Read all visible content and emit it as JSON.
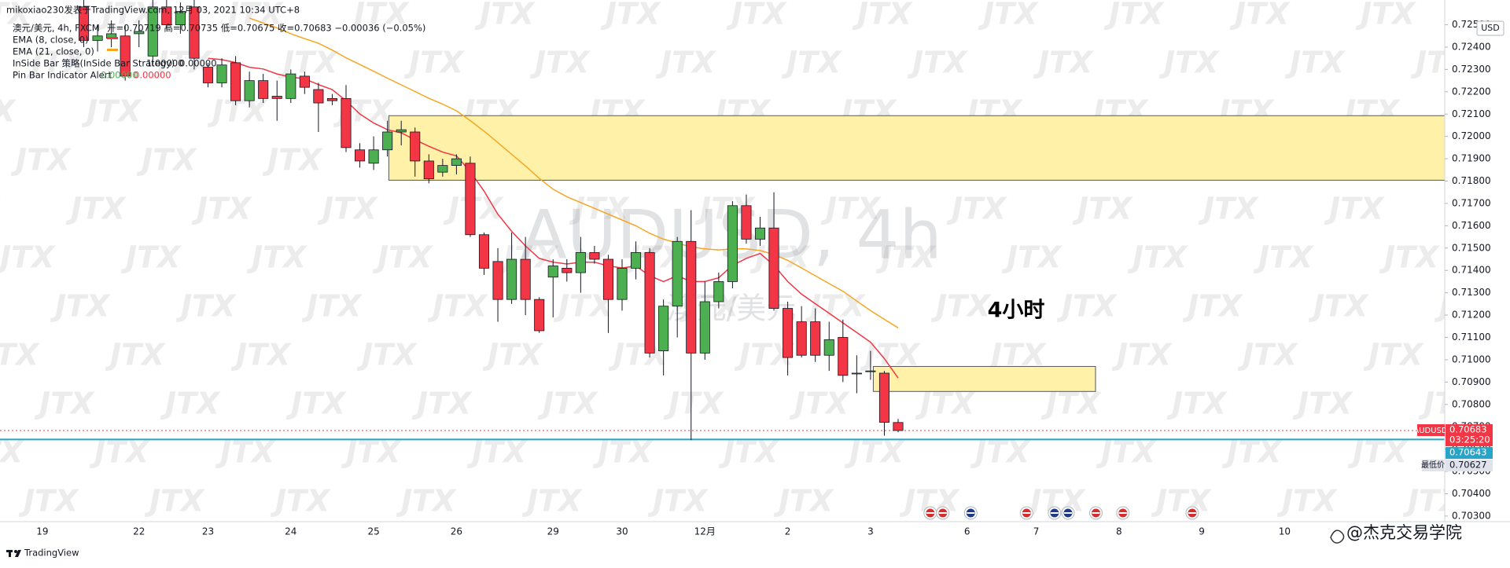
{
  "header": {
    "publisher": "mikoxiao230发表于TradingView.com, 12月 03, 2021 10:34 UTC+8",
    "symbol_line": "澳元/美元, 4h, FXCM",
    "ohlc_line": "开=0.70719 高=0.70735 低=0.70675 收=0.70683 −0.00036 (−0.05%)",
    "indicators": [
      {
        "name": "InSide Bar 策略(InSide Bar Strategy)",
        "values": [
          "1.00000",
          "0.00000"
        ]
      },
      {
        "name": "Pin Bar Indicator Alert",
        "values": [
          "0.00000",
          "0.00000"
        ]
      }
    ]
  },
  "footer": {
    "brand": "TradingView",
    "author": "@杰克交易学院"
  },
  "watermark": "JTX",
  "chart_data": {
    "type": "candlestick",
    "title": "AUDUSD, 4h",
    "subtitle": "澳元/美元",
    "annotation": "4小时",
    "currency": "USD",
    "up_color": "#4caf50",
    "down_color": "#f23645",
    "categories": [
      "19",
      null,
      null,
      null,
      null,
      null,
      null,
      "22",
      null,
      null,
      null,
      null,
      "23",
      null,
      null,
      null,
      null,
      null,
      "24",
      null,
      null,
      null,
      null,
      null,
      "25",
      null,
      null,
      null,
      null,
      null,
      "26",
      null,
      null,
      null,
      null,
      null,
      null,
      "29",
      null,
      null,
      null,
      null,
      "30",
      null,
      null,
      null,
      null,
      null,
      "12月",
      null,
      null,
      null,
      null,
      null,
      "2",
      null,
      null,
      null,
      null,
      null,
      "3",
      null,
      null,
      null,
      null,
      null,
      null,
      "6",
      null,
      null,
      null,
      null,
      "7",
      null,
      null,
      null,
      null,
      null,
      "8",
      null,
      null,
      null,
      null,
      null,
      "9",
      null,
      null,
      null,
      null,
      null,
      "10"
    ],
    "open": [
      null,
      null,
      null,
      0.7258,
      0.7243,
      0.7244,
      0.7245,
      0.7246,
      0.7236,
      0.7258,
      0.725,
      0.7258,
      0.7231,
      0.7224,
      0.7233,
      0.7216,
      0.7225,
      0.7218,
      0.7217,
      0.7227,
      0.7221,
      0.7217,
      0.7217,
      0.7194,
      0.7188,
      0.7194,
      0.7202,
      0.7202,
      0.7189,
      0.7184,
      0.7187,
      0.7188,
      0.7156,
      0.7144,
      0.7127,
      0.7145,
      0.7127,
      0.7137,
      0.7141,
      0.7139,
      0.7148,
      0.7145,
      0.7127,
      0.7141,
      0.7148,
      0.7104,
      0.7124,
      0.7153,
      0.7103,
      0.7126,
      0.7135,
      0.7169,
      0.7154,
      0.7159,
      0.7123,
      0.7117,
      0.7117,
      0.7102,
      0.711,
      0.7094,
      0.7095,
      0.7094,
      0.70719,
      null,
      null,
      null,
      null,
      null,
      null,
      null,
      null,
      null,
      null,
      null,
      null,
      null,
      null,
      null,
      null,
      null,
      null,
      null,
      null,
      null,
      null,
      null,
      null,
      null,
      null,
      null,
      null
    ],
    "high": [
      null,
      null,
      null,
      0.7262,
      0.725,
      0.7252,
      0.725,
      0.7252,
      0.7262,
      0.7262,
      0.726,
      0.7262,
      0.7233,
      0.7235,
      0.7236,
      0.7229,
      0.7228,
      0.7225,
      0.723,
      0.7229,
      0.7224,
      0.7219,
      0.7223,
      0.7197,
      0.72,
      0.7207,
      0.7207,
      0.7204,
      0.7192,
      0.719,
      0.7192,
      0.7191,
      0.7157,
      0.715,
      0.7157,
      0.7155,
      0.7128,
      0.7145,
      0.7145,
      0.7155,
      0.7151,
      0.7147,
      0.7145,
      0.7153,
      0.715,
      0.7127,
      0.7155,
      0.7167,
      0.7135,
      0.7139,
      0.7171,
      0.7174,
      0.7164,
      0.7175,
      0.7126,
      0.7124,
      0.7123,
      0.7117,
      0.7118,
      0.7102,
      0.7104,
      0.7095,
      0.70735,
      null,
      null,
      null,
      null,
      null,
      null,
      null,
      null,
      null,
      null,
      null,
      null,
      null,
      null,
      null,
      null,
      null,
      null,
      null,
      null,
      null,
      null,
      null,
      null,
      null,
      null,
      null,
      null
    ],
    "low": [
      null,
      null,
      null,
      0.724,
      0.7238,
      0.724,
      0.7225,
      0.724,
      0.7232,
      0.7248,
      0.7246,
      0.723,
      0.7222,
      0.7222,
      0.7214,
      0.7213,
      0.7215,
      0.7207,
      0.7215,
      0.7219,
      0.7202,
      0.7214,
      0.7193,
      0.7186,
      0.7185,
      0.7191,
      0.7196,
      0.7182,
      0.7179,
      0.7182,
      0.7183,
      0.7155,
      0.7138,
      0.7117,
      0.7125,
      0.712,
      0.7112,
      0.7119,
      0.7135,
      0.713,
      0.7143,
      0.7112,
      0.7122,
      0.7136,
      0.7101,
      0.7093,
      0.711,
      0.7064,
      0.71,
      0.7123,
      0.7132,
      0.7152,
      0.7151,
      0.7122,
      0.7093,
      0.7101,
      0.7099,
      0.7095,
      0.709,
      0.7085,
      0.7091,
      0.7066,
      0.70675,
      null,
      null,
      null,
      null,
      null,
      null,
      null,
      null,
      null,
      null,
      null,
      null,
      null,
      null,
      null,
      null,
      null,
      null,
      null,
      null,
      null,
      null,
      null,
      null,
      null,
      null,
      null,
      null
    ],
    "close": [
      null,
      null,
      null,
      0.7243,
      0.7245,
      0.7246,
      0.7227,
      0.7247,
      0.7258,
      0.725,
      0.7256,
      0.7235,
      0.7224,
      0.7232,
      0.7216,
      0.7225,
      0.7217,
      0.7217,
      0.7228,
      0.7222,
      0.7215,
      0.7216,
      0.7195,
      0.7189,
      0.7194,
      0.7202,
      0.7203,
      0.7189,
      0.7181,
      0.7187,
      0.719,
      0.7156,
      0.7141,
      0.7127,
      0.7145,
      0.7127,
      0.7113,
      0.7142,
      0.7139,
      0.7148,
      0.7145,
      0.7127,
      0.7141,
      0.7148,
      0.7103,
      0.7124,
      0.7153,
      0.7103,
      0.7126,
      0.7135,
      0.7169,
      0.7154,
      0.7159,
      0.7123,
      0.7101,
      0.7102,
      0.7102,
      0.7109,
      0.7093,
      0.7094,
      0.7095,
      0.7072,
      0.70683,
      null,
      null,
      null,
      null,
      null,
      null,
      null,
      null,
      null,
      null,
      null,
      null,
      null,
      null,
      null,
      null,
      null,
      null,
      null,
      null,
      null,
      null,
      null,
      null,
      null,
      null,
      null,
      null
    ],
    "series": [
      {
        "name": "EMA (8, close, 0)",
        "color": "#f23645",
        "values": [
          null,
          null,
          null,
          null,
          null,
          null,
          null,
          null,
          null,
          null,
          null,
          null,
          0.7235,
          0.72344,
          0.72331,
          0.7231,
          0.72302,
          0.7228,
          0.72266,
          0.72258,
          0.72232,
          0.7221,
          0.7216,
          0.72101,
          0.7206,
          0.7203,
          0.72016,
          0.71985,
          0.71956,
          0.7193,
          0.71913,
          0.71843,
          0.71755,
          0.71652,
          0.71575,
          0.7151,
          0.71454,
          0.71437,
          0.71429,
          0.71437,
          0.71437,
          0.7142,
          0.71411,
          0.7142,
          0.71376,
          0.7135,
          0.71376,
          0.7135,
          0.7135,
          0.71367,
          0.71423,
          0.71454,
          0.71476,
          0.71423,
          0.7135,
          0.71294,
          0.71251,
          0.71208,
          0.71165,
          0.71122,
          0.71079,
          0.71005,
          0.70918,
          null,
          null,
          null,
          null,
          null,
          null,
          null,
          null,
          null,
          null,
          null,
          null,
          null,
          null,
          null,
          null,
          null,
          null,
          null,
          null,
          null,
          null,
          null,
          null,
          null,
          null,
          null,
          null
        ]
      },
      {
        "name": "EMA (21, close, 0)",
        "color": "#f5a623",
        "values": [
          null,
          null,
          null,
          null,
          null,
          null,
          null,
          null,
          null,
          null,
          null,
          null,
          null,
          null,
          null,
          0.7253,
          0.72508,
          0.72486,
          0.7246,
          0.72438,
          0.72417,
          0.72387,
          0.72352,
          0.72322,
          0.72292,
          0.72261,
          0.72231,
          0.72201,
          0.72171,
          0.72145,
          0.72115,
          0.72071,
          0.72024,
          0.71972,
          0.7192,
          0.71868,
          0.71812,
          0.71764,
          0.7173,
          0.71704,
          0.71678,
          0.71652,
          0.71626,
          0.716,
          0.71566,
          0.7154,
          0.71523,
          0.71505,
          0.71497,
          0.71492,
          0.71497,
          0.71497,
          0.71489,
          0.71471,
          0.71445,
          0.71411,
          0.71376,
          0.71341,
          0.71307,
          0.71263,
          0.7122,
          0.71181,
          0.71143,
          null,
          null,
          null,
          null,
          null,
          null,
          null,
          null,
          null,
          null,
          null,
          null,
          null,
          null,
          null,
          null,
          null,
          null,
          null,
          null,
          null,
          null,
          null,
          null,
          null,
          null,
          null,
          null
        ]
      }
    ],
    "zones": [
      {
        "top": 0.72093,
        "bottom": 0.71804,
        "x": [
          25.1,
          101.6
        ],
        "color": "#fff1a8"
      },
      {
        "top": 0.7097,
        "bottom": 0.70858,
        "x": [
          60.2,
          76.3
        ],
        "color": "#fff1a8"
      }
    ],
    "last_price": {
      "symbol": "AUDUSD",
      "value": 0.70683,
      "countdown": "03:25:20",
      "color": "#f23645"
    },
    "h_line": {
      "value": 0.70643,
      "color": "#26a5c8"
    },
    "low_tag": {
      "label": "最低价",
      "value": 0.70627
    },
    "xlim": [
      -3.07,
      101.6
    ],
    "ylim": [
      0.70275,
      0.72611
    ],
    "yticks": [
      {
        "value": 0.703,
        "label": "0.70300"
      },
      {
        "value": 0.704,
        "label": "0.70400"
      },
      {
        "value": 0.705,
        "label": "0.70500"
      },
      {
        "value": 0.706,
        "label": "0.70600"
      },
      {
        "value": 0.707,
        "label": "0.70700"
      },
      {
        "value": 0.708,
        "label": "0.70800"
      },
      {
        "value": 0.709,
        "label": "0.70900"
      },
      {
        "value": 0.71,
        "label": "0.71000"
      },
      {
        "value": 0.711,
        "label": "0.71100"
      },
      {
        "value": 0.712,
        "label": "0.71200"
      },
      {
        "value": 0.713,
        "label": "0.71300"
      },
      {
        "value": 0.714,
        "label": "0.71400"
      },
      {
        "value": 0.715,
        "label": "0.71500"
      },
      {
        "value": 0.716,
        "label": "0.71600"
      },
      {
        "value": 0.717,
        "label": "0.71700"
      },
      {
        "value": 0.718,
        "label": "0.71800"
      },
      {
        "value": 0.719,
        "label": "0.71900"
      },
      {
        "value": 0.72,
        "label": "0.72000"
      },
      {
        "value": 0.721,
        "label": "0.72100"
      },
      {
        "value": 0.722,
        "label": "0.72200"
      },
      {
        "value": 0.723,
        "label": "0.72300"
      },
      {
        "value": 0.724,
        "label": "0.72400"
      },
      {
        "value": 0.725,
        "label": "0.72500"
      }
    ]
  }
}
